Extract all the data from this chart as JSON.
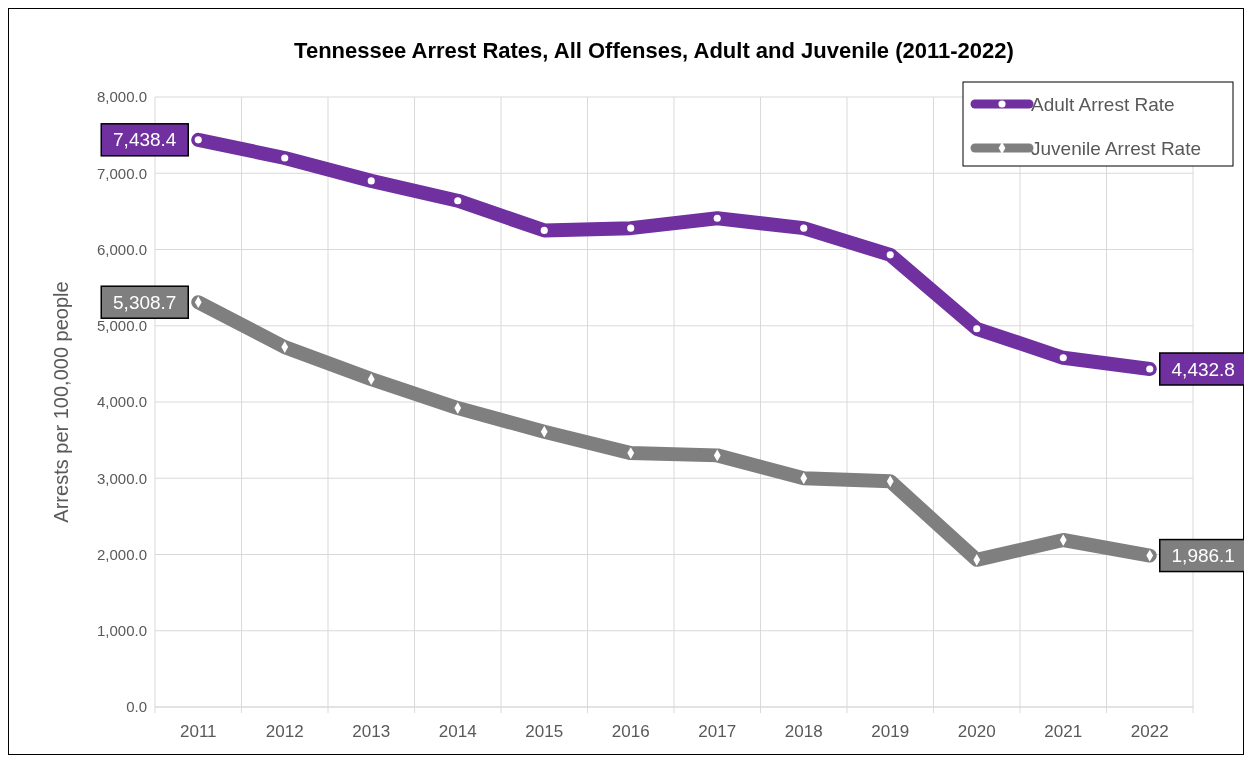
{
  "chart_data": {
    "type": "line",
    "title": "Tennessee Arrest Rates, All Offenses, Adult and Juvenile (2011-2022)",
    "ylabel": "Arrests per 100,000 people",
    "categories": [
      "2011",
      "2012",
      "2013",
      "2014",
      "2015",
      "2016",
      "2017",
      "2018",
      "2019",
      "2020",
      "2021",
      "2022"
    ],
    "ylim": [
      0,
      8000
    ],
    "yticks": [
      {
        "value": 0,
        "label": "0.0"
      },
      {
        "value": 1000,
        "label": "1,000.0"
      },
      {
        "value": 2000,
        "label": "2,000.0"
      },
      {
        "value": 3000,
        "label": "3,000.0"
      },
      {
        "value": 4000,
        "label": "4,000.0"
      },
      {
        "value": 5000,
        "label": "5,000.0"
      },
      {
        "value": 6000,
        "label": "6,000.0"
      },
      {
        "value": 7000,
        "label": "7,000.0"
      },
      {
        "value": 8000,
        "label": "8,000.0"
      }
    ],
    "grid": true,
    "legend": "top right",
    "series": [
      {
        "name": "Adult Arrest Rate",
        "color": "#7030a0",
        "marker": "circle",
        "values": [
          7438.4,
          7200,
          6900,
          6640,
          6250,
          6280,
          6410,
          6280,
          5930,
          4960,
          4580,
          4432.8
        ],
        "value_labels": [
          "7,438.4",
          null,
          null,
          null,
          null,
          null,
          null,
          null,
          null,
          null,
          null,
          "4,432.8"
        ]
      },
      {
        "name": "Juvenile Arrest Rate",
        "color": "#7f7f7f",
        "marker": "diamond",
        "values": [
          5308.7,
          4720,
          4300,
          3920,
          3610,
          3330,
          3300,
          3000,
          2960,
          1930,
          2190,
          1986.1
        ],
        "value_labels": [
          "5,308.7",
          null,
          null,
          null,
          null,
          null,
          null,
          null,
          null,
          null,
          null,
          "1,986.1"
        ]
      }
    ]
  }
}
